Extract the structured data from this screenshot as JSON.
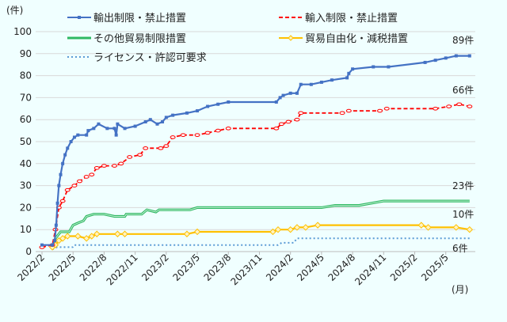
{
  "chart_data": {
    "type": "line",
    "ylabel": "(件)",
    "xlabel": "(月)",
    "ylim": [
      0,
      100
    ],
    "yticks": [
      "0",
      "10",
      "20",
      "30",
      "40",
      "50",
      "60",
      "70",
      "80",
      "90",
      "100"
    ],
    "xticks": [
      "2022/2",
      "2022/5",
      "2022/8",
      "2022/11",
      "2023/2",
      "2023/5",
      "2023/8",
      "2023/11",
      "2024/2",
      "2024/5",
      "2024/8",
      "2024/11",
      "2025/2",
      "2025/5"
    ],
    "grid": true,
    "legend_position": "top-left",
    "series": [
      {
        "name": "輸出制限・禁止措置",
        "color": "#4472C4",
        "style": "solid-square",
        "end_label": "89件",
        "points": [
          [
            "2022-02-01",
            3
          ],
          [
            "2022-03-01",
            3
          ],
          [
            "2022-03-08",
            5
          ],
          [
            "2022-03-12",
            12
          ],
          [
            "2022-03-16",
            22
          ],
          [
            "2022-03-20",
            30
          ],
          [
            "2022-03-25",
            35
          ],
          [
            "2022-04-01",
            40
          ],
          [
            "2022-04-08",
            44
          ],
          [
            "2022-04-15",
            47
          ],
          [
            "2022-04-25",
            50
          ],
          [
            "2022-05-05",
            52
          ],
          [
            "2022-05-15",
            53
          ],
          [
            "2022-06-10",
            53
          ],
          [
            "2022-06-15",
            55
          ],
          [
            "2022-07-01",
            56
          ],
          [
            "2022-07-15",
            58
          ],
          [
            "2022-08-10",
            56
          ],
          [
            "2022-09-01",
            56
          ],
          [
            "2022-09-06",
            53
          ],
          [
            "2022-09-10",
            58
          ],
          [
            "2022-10-01",
            56
          ],
          [
            "2022-11-01",
            57
          ],
          [
            "2022-12-01",
            59
          ],
          [
            "2022-12-15",
            60
          ],
          [
            "2023-01-05",
            58
          ],
          [
            "2023-01-20",
            59
          ],
          [
            "2023-02-01",
            61
          ],
          [
            "2023-02-20",
            62
          ],
          [
            "2023-04-01",
            63
          ],
          [
            "2023-05-01",
            64
          ],
          [
            "2023-06-01",
            66
          ],
          [
            "2023-07-01",
            67
          ],
          [
            "2023-08-01",
            68
          ],
          [
            "2023-12-20",
            68
          ],
          [
            "2024-01-01",
            70
          ],
          [
            "2024-01-10",
            71
          ],
          [
            "2024-02-01",
            72
          ],
          [
            "2024-02-20",
            72
          ],
          [
            "2024-03-01",
            76
          ],
          [
            "2024-04-01",
            76
          ],
          [
            "2024-05-01",
            77
          ],
          [
            "2024-06-01",
            78
          ],
          [
            "2024-07-15",
            79
          ],
          [
            "2024-07-20",
            81
          ],
          [
            "2024-08-01",
            83
          ],
          [
            "2024-10-01",
            84
          ],
          [
            "2024-11-15",
            84
          ],
          [
            "2025-03-01",
            86
          ],
          [
            "2025-04-01",
            87
          ],
          [
            "2025-05-01",
            88
          ],
          [
            "2025-06-01",
            89
          ],
          [
            "2025-07-10",
            89
          ]
        ]
      },
      {
        "name": "輸入制限・禁止措置",
        "color": "#FF0000",
        "style": "dashed-circle",
        "end_label": "66件",
        "points": [
          [
            "2022-02-01",
            2
          ],
          [
            "2022-03-01",
            3
          ],
          [
            "2022-03-10",
            10
          ],
          [
            "2022-03-20",
            20
          ],
          [
            "2022-04-01",
            23
          ],
          [
            "2022-04-15",
            28
          ],
          [
            "2022-05-05",
            30
          ],
          [
            "2022-05-20",
            32
          ],
          [
            "2022-06-10",
            34
          ],
          [
            "2022-06-25",
            35
          ],
          [
            "2022-07-10",
            38
          ],
          [
            "2022-08-01",
            39
          ],
          [
            "2022-09-01",
            39
          ],
          [
            "2022-09-20",
            40
          ],
          [
            "2022-10-15",
            43
          ],
          [
            "2022-11-15",
            44
          ],
          [
            "2022-12-01",
            47
          ],
          [
            "2023-01-15",
            47
          ],
          [
            "2023-02-01",
            48
          ],
          [
            "2023-02-20",
            52
          ],
          [
            "2023-03-20",
            53
          ],
          [
            "2023-05-01",
            53
          ],
          [
            "2023-06-01",
            54
          ],
          [
            "2023-07-01",
            55
          ],
          [
            "2023-08-01",
            56
          ],
          [
            "2023-12-20",
            56
          ],
          [
            "2024-01-05",
            58
          ],
          [
            "2024-01-25",
            59
          ],
          [
            "2024-02-20",
            60
          ],
          [
            "2024-03-01",
            63
          ],
          [
            "2024-07-01",
            63
          ],
          [
            "2024-07-20",
            64
          ],
          [
            "2024-10-20",
            64
          ],
          [
            "2024-11-10",
            65
          ],
          [
            "2025-04-01",
            65
          ],
          [
            "2025-05-10",
            66
          ],
          [
            "2025-06-10",
            67
          ],
          [
            "2025-07-10",
            66
          ]
        ]
      },
      {
        "name": "その他貿易制限措置",
        "color": "#2EB862",
        "style": "double",
        "end_label": "23件",
        "points": [
          [
            "2022-03-01",
            1
          ],
          [
            "2022-03-10",
            6
          ],
          [
            "2022-03-25",
            9
          ],
          [
            "2022-04-20",
            9
          ],
          [
            "2022-05-01",
            12
          ],
          [
            "2022-05-15",
            13
          ],
          [
            "2022-06-01",
            14
          ],
          [
            "2022-06-10",
            16
          ],
          [
            "2022-07-01",
            17
          ],
          [
            "2022-08-01",
            17
          ],
          [
            "2022-09-01",
            16
          ],
          [
            "2022-10-01",
            16
          ],
          [
            "2022-10-05",
            17
          ],
          [
            "2022-11-20",
            17
          ],
          [
            "2022-12-05",
            19
          ],
          [
            "2023-01-01",
            18
          ],
          [
            "2023-01-10",
            19
          ],
          [
            "2023-04-10",
            19
          ],
          [
            "2023-05-01",
            20
          ],
          [
            "2024-05-01",
            20
          ],
          [
            "2024-06-10",
            21
          ],
          [
            "2024-08-20",
            21
          ],
          [
            "2024-11-01",
            23
          ],
          [
            "2025-07-10",
            23
          ]
        ]
      },
      {
        "name": "貿易自由化・減税措置",
        "color": "#FFC000",
        "style": "solid-diamond",
        "end_label": "10件",
        "points": [
          [
            "2022-03-01",
            2
          ],
          [
            "2022-03-10",
            3
          ],
          [
            "2022-03-20",
            5
          ],
          [
            "2022-04-01",
            6
          ],
          [
            "2022-04-15",
            7
          ],
          [
            "2022-05-15",
            7
          ],
          [
            "2022-06-10",
            6
          ],
          [
            "2022-06-25",
            7
          ],
          [
            "2022-07-10",
            8
          ],
          [
            "2022-09-10",
            8
          ],
          [
            "2022-10-01",
            8
          ],
          [
            "2023-04-01",
            8
          ],
          [
            "2023-05-01",
            9
          ],
          [
            "2023-12-10",
            9
          ],
          [
            "2023-12-25",
            10
          ],
          [
            "2024-02-01",
            10
          ],
          [
            "2024-02-20",
            11
          ],
          [
            "2024-03-15",
            11
          ],
          [
            "2024-04-20",
            12
          ],
          [
            "2025-02-20",
            12
          ],
          [
            "2025-03-10",
            11
          ],
          [
            "2025-06-01",
            11
          ],
          [
            "2025-07-10",
            10
          ]
        ]
      },
      {
        "name": "ライセンス・許認可要求",
        "color": "#5B9BD5",
        "style": "dotted",
        "end_label": "6件",
        "points": [
          [
            "2022-03-01",
            1
          ],
          [
            "2022-03-15",
            2
          ],
          [
            "2022-04-30",
            2
          ],
          [
            "2022-05-05",
            3
          ],
          [
            "2023-12-25",
            3
          ],
          [
            "2024-01-05",
            4
          ],
          [
            "2024-02-10",
            4
          ],
          [
            "2024-02-20",
            6
          ],
          [
            "2025-07-10",
            6
          ]
        ]
      }
    ]
  }
}
